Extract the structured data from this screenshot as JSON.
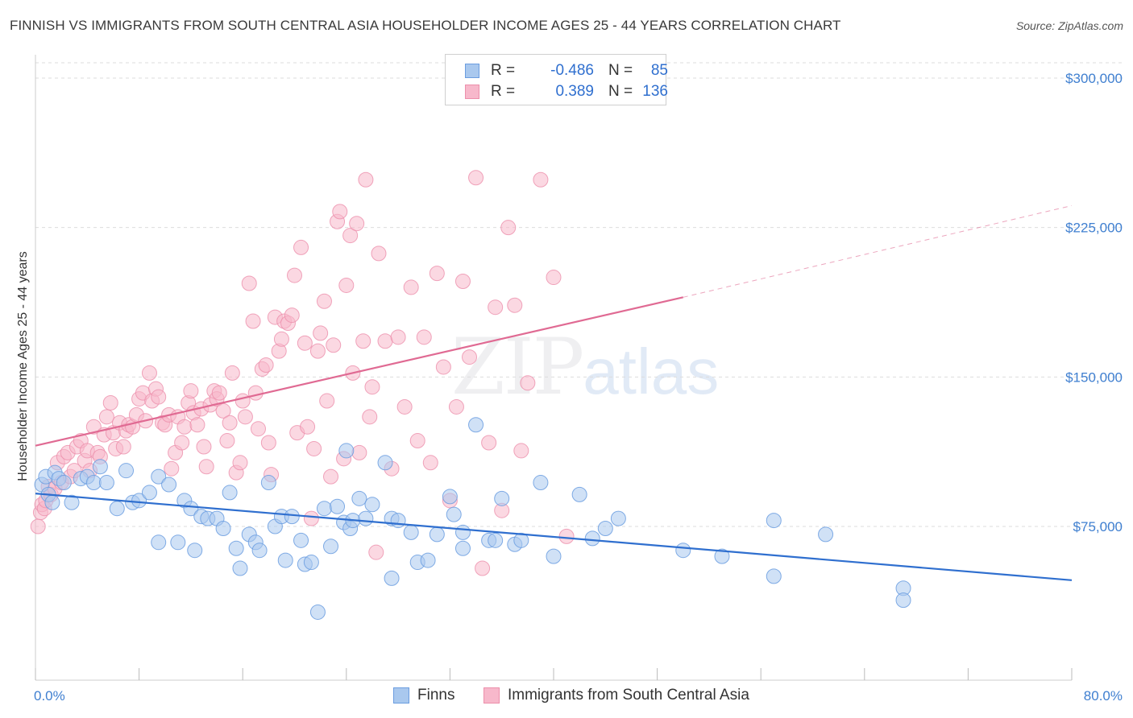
{
  "title": "FINNISH VS IMMIGRANTS FROM SOUTH CENTRAL ASIA HOUSEHOLDER INCOME AGES 25 - 44 YEARS CORRELATION CHART",
  "source": "Source: ZipAtlas.com",
  "watermark": {
    "zip": "ZIP",
    "atlas": "atlas"
  },
  "legend": {
    "r_label": "R =",
    "n_label": "N =",
    "finns": {
      "r": "-0.486",
      "n": "85"
    },
    "immigrants": {
      "r": "0.389",
      "n": "136"
    }
  },
  "colors": {
    "finns_fill": "#a9c8ee",
    "finns_stroke": "#6b9de0",
    "finns_line": "#2f6fcf",
    "imm_fill": "#f7b8cb",
    "imm_stroke": "#ec8fab",
    "imm_line": "#e06a93",
    "grid": "#dddddd",
    "axis_text": "#3f7fd0"
  },
  "chart_data": {
    "type": "scatter",
    "title": "FINNISH VS IMMIGRANTS FROM SOUTH CENTRAL ASIA HOUSEHOLDER INCOME AGES 25 - 44 YEARS CORRELATION CHART",
    "xlabel": "",
    "ylabel": "Householder Income Ages 25 - 44 years",
    "xlim": [
      0,
      80
    ],
    "ylim": [
      10000,
      320000
    ],
    "x_tick_labels": [
      "0.0%",
      "80.0%"
    ],
    "y_ticks": [
      75000,
      150000,
      225000,
      300000
    ],
    "y_tick_labels": [
      "$75,000",
      "$150,000",
      "$225,000",
      "$300,000"
    ],
    "grid": true,
    "legend_position": "top-center",
    "series": [
      {
        "name": "Finns",
        "trend": {
          "x": [
            0,
            80
          ],
          "y": [
            91500,
            48000
          ]
        },
        "points": [
          [
            0.5,
            96000
          ],
          [
            0.8,
            100000
          ],
          [
            1,
            91000
          ],
          [
            1.3,
            87000
          ],
          [
            1.5,
            102000
          ],
          [
            1.8,
            99000
          ],
          [
            2.2,
            97000
          ],
          [
            2.8,
            87000
          ],
          [
            3.5,
            99000
          ],
          [
            4,
            100000
          ],
          [
            4.5,
            97000
          ],
          [
            5,
            105000
          ],
          [
            5.5,
            97000
          ],
          [
            6.3,
            84000
          ],
          [
            7,
            103000
          ],
          [
            7.5,
            87000
          ],
          [
            8,
            88000
          ],
          [
            8.8,
            92000
          ],
          [
            9.5,
            67000
          ],
          [
            9.5,
            100000
          ],
          [
            10.3,
            96000
          ],
          [
            11,
            67000
          ],
          [
            11.5,
            88000
          ],
          [
            12,
            84000
          ],
          [
            12.3,
            63000
          ],
          [
            12.8,
            80000
          ],
          [
            13.3,
            79000
          ],
          [
            14,
            79000
          ],
          [
            14.5,
            74000
          ],
          [
            15,
            92000
          ],
          [
            15.5,
            64000
          ],
          [
            15.8,
            54000
          ],
          [
            16.5,
            71000
          ],
          [
            17,
            67000
          ],
          [
            17.3,
            63000
          ],
          [
            18,
            97000
          ],
          [
            18.5,
            75000
          ],
          [
            19,
            80000
          ],
          [
            19.3,
            58000
          ],
          [
            19.8,
            80000
          ],
          [
            20.5,
            68000
          ],
          [
            20.8,
            56000
          ],
          [
            21.3,
            57000
          ],
          [
            21.8,
            32000
          ],
          [
            22.3,
            84000
          ],
          [
            22.8,
            65000
          ],
          [
            23.3,
            85000
          ],
          [
            23.8,
            77000
          ],
          [
            24,
            113000
          ],
          [
            24.3,
            74000
          ],
          [
            24.5,
            78000
          ],
          [
            25,
            89000
          ],
          [
            25.5,
            79000
          ],
          [
            26,
            86000
          ],
          [
            27,
            107000
          ],
          [
            27.5,
            49000
          ],
          [
            27.5,
            79000
          ],
          [
            28,
            78000
          ],
          [
            29,
            72000
          ],
          [
            29.5,
            57000
          ],
          [
            30.3,
            58000
          ],
          [
            31,
            71000
          ],
          [
            32,
            90000
          ],
          [
            32.3,
            81000
          ],
          [
            33,
            72000
          ],
          [
            33,
            64000
          ],
          [
            34,
            126000
          ],
          [
            35,
            68000
          ],
          [
            35.5,
            68000
          ],
          [
            36,
            89000
          ],
          [
            37,
            66000
          ],
          [
            37.5,
            68000
          ],
          [
            39,
            97000
          ],
          [
            40,
            60000
          ],
          [
            42,
            91000
          ],
          [
            43,
            69000
          ],
          [
            44,
            74000
          ],
          [
            45,
            79000
          ],
          [
            50,
            63000
          ],
          [
            53,
            60000
          ],
          [
            57,
            50000
          ],
          [
            57,
            78000
          ],
          [
            61,
            71000
          ],
          [
            67,
            44000
          ],
          [
            67,
            38000
          ]
        ]
      },
      {
        "name": "Immigrants from South Central Asia",
        "trend": {
          "x": [
            0,
            50
          ],
          "y": [
            115500,
            190000
          ],
          "x_dashed_end": 80,
          "y_dashed_end": 236000
        },
        "points": [
          [
            0.2,
            75000
          ],
          [
            0.4,
            82000
          ],
          [
            0.5,
            86000
          ],
          [
            0.7,
            84000
          ],
          [
            0.8,
            88000
          ],
          [
            1,
            95000
          ],
          [
            1.2,
            91000
          ],
          [
            1.5,
            94000
          ],
          [
            1.7,
            107000
          ],
          [
            2,
            97000
          ],
          [
            2.2,
            110000
          ],
          [
            2.5,
            112000
          ],
          [
            2.7,
            100000
          ],
          [
            3,
            103000
          ],
          [
            3.2,
            115000
          ],
          [
            3.5,
            118000
          ],
          [
            3.8,
            108000
          ],
          [
            4,
            113000
          ],
          [
            4.2,
            103000
          ],
          [
            4.5,
            125000
          ],
          [
            4.8,
            112000
          ],
          [
            5,
            110000
          ],
          [
            5.3,
            121000
          ],
          [
            5.5,
            130000
          ],
          [
            5.8,
            137000
          ],
          [
            6,
            122000
          ],
          [
            6.2,
            114000
          ],
          [
            6.5,
            127000
          ],
          [
            6.8,
            115000
          ],
          [
            7,
            123000
          ],
          [
            7.2,
            126000
          ],
          [
            7.5,
            125000
          ],
          [
            7.8,
            131000
          ],
          [
            8,
            139000
          ],
          [
            8.3,
            142000
          ],
          [
            8.5,
            128000
          ],
          [
            8.8,
            152000
          ],
          [
            9,
            138000
          ],
          [
            9.3,
            144000
          ],
          [
            9.5,
            140000
          ],
          [
            9.8,
            127000
          ],
          [
            10,
            126000
          ],
          [
            10.3,
            131000
          ],
          [
            10.5,
            104000
          ],
          [
            10.8,
            112000
          ],
          [
            11,
            130000
          ],
          [
            11.3,
            117000
          ],
          [
            11.5,
            125000
          ],
          [
            11.8,
            137000
          ],
          [
            12,
            143000
          ],
          [
            12.2,
            132000
          ],
          [
            12.5,
            126000
          ],
          [
            12.8,
            134000
          ],
          [
            13,
            115000
          ],
          [
            13.2,
            105000
          ],
          [
            13.5,
            136000
          ],
          [
            13.8,
            143000
          ],
          [
            14,
            139000
          ],
          [
            14.2,
            142000
          ],
          [
            14.5,
            133000
          ],
          [
            14.8,
            118000
          ],
          [
            15,
            127000
          ],
          [
            15.2,
            152000
          ],
          [
            15.5,
            102000
          ],
          [
            15.8,
            107000
          ],
          [
            16,
            138000
          ],
          [
            16.2,
            130000
          ],
          [
            16.5,
            197000
          ],
          [
            16.8,
            178000
          ],
          [
            17,
            142000
          ],
          [
            17.2,
            124000
          ],
          [
            17.5,
            154000
          ],
          [
            17.8,
            156000
          ],
          [
            18,
            117000
          ],
          [
            18.2,
            101000
          ],
          [
            18.5,
            180000
          ],
          [
            18.8,
            163000
          ],
          [
            19,
            169000
          ],
          [
            19.2,
            178000
          ],
          [
            19.5,
            177000
          ],
          [
            19.8,
            181000
          ],
          [
            20,
            201000
          ],
          [
            20.2,
            122000
          ],
          [
            20.5,
            215000
          ],
          [
            20.8,
            167000
          ],
          [
            21,
            125000
          ],
          [
            21.3,
            79000
          ],
          [
            21.5,
            114000
          ],
          [
            21.8,
            163000
          ],
          [
            22,
            172000
          ],
          [
            22.3,
            188000
          ],
          [
            22.5,
            138000
          ],
          [
            22.8,
            100000
          ],
          [
            23,
            166000
          ],
          [
            23.3,
            228000
          ],
          [
            23.5,
            233000
          ],
          [
            23.8,
            109000
          ],
          [
            24,
            196000
          ],
          [
            24.3,
            221000
          ],
          [
            24.5,
            152000
          ],
          [
            24.8,
            227000
          ],
          [
            25,
            112000
          ],
          [
            25.3,
            168000
          ],
          [
            25.5,
            249000
          ],
          [
            25.8,
            130000
          ],
          [
            26,
            145000
          ],
          [
            26.3,
            62000
          ],
          [
            26.5,
            212000
          ],
          [
            27,
            168000
          ],
          [
            27.5,
            104000
          ],
          [
            28,
            170000
          ],
          [
            28.5,
            135000
          ],
          [
            29,
            195000
          ],
          [
            29.5,
            118000
          ],
          [
            30,
            170000
          ],
          [
            30.5,
            107000
          ],
          [
            31,
            202000
          ],
          [
            31.5,
            155000
          ],
          [
            32,
            88000
          ],
          [
            32.5,
            135000
          ],
          [
            33,
            198000
          ],
          [
            33.5,
            160000
          ],
          [
            34,
            250000
          ],
          [
            34.5,
            54000
          ],
          [
            35,
            117000
          ],
          [
            35.5,
            185000
          ],
          [
            36,
            83000
          ],
          [
            36.5,
            225000
          ],
          [
            37,
            186000
          ],
          [
            37.5,
            113000
          ],
          [
            38,
            147000
          ],
          [
            39,
            249000
          ],
          [
            40,
            200000
          ],
          [
            41,
            70000
          ]
        ]
      }
    ]
  }
}
